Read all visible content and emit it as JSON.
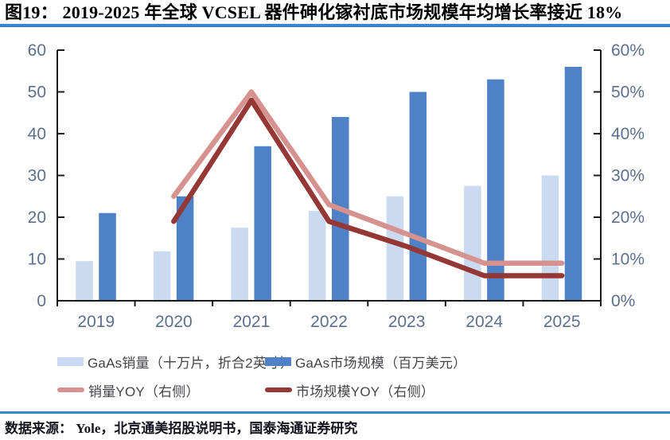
{
  "figure": {
    "title": "图19：  2019-2025 年全球 VCSEL 器件砷化镓衬底市场规模年均增长率接近 18%",
    "source": "数据来源： Yole，北京通美招股说明书，国泰海通证券研究"
  },
  "colors": {
    "accent_rule": "#3787d2",
    "accent_rule_edge": "#2a6ab0",
    "bar_light": "#c9daf1",
    "bar_dark": "#4e81c6",
    "line_pink": "#d6928f",
    "line_darkred": "#953735",
    "axis_line": "#1a1a1a",
    "axis_label": "#5d6f8e",
    "legend_text": "#44444c",
    "title_text": "#000000",
    "source_text": "#14141f"
  },
  "chart_data": {
    "type": "combo-bar-line",
    "title": "2019-2025 年全球 VCSEL 器件砷化镓衬底市场规模",
    "categories": [
      "2019",
      "2020",
      "2021",
      "2022",
      "2023",
      "2024",
      "2025"
    ],
    "series": [
      {
        "key": "gaas-sales-volume",
        "name": "GaAs销量（十万片，折合2英寸）",
        "type": "bar",
        "axis": "left",
        "color_key": "bar_light",
        "values": [
          9.5,
          11.8,
          17.5,
          21.5,
          25,
          27.5,
          30
        ]
      },
      {
        "key": "gaas-market-size",
        "name": "GaAs市场规模（百万美元）",
        "type": "bar",
        "axis": "left",
        "color_key": "bar_dark",
        "values": [
          21,
          25,
          37,
          44,
          50,
          53,
          56
        ]
      },
      {
        "key": "sales-yoy",
        "name": "销量YOY（右侧）",
        "type": "line",
        "axis": "right",
        "color_key": "line_pink",
        "values": [
          null,
          25,
          50,
          23,
          16,
          9,
          9
        ]
      },
      {
        "key": "market-size-yoy",
        "name": "市场规模YOY（右侧）",
        "type": "line",
        "axis": "right",
        "color_key": "line_darkred",
        "values": [
          null,
          19,
          48,
          19,
          13,
          6,
          6
        ]
      }
    ],
    "left_axis": {
      "min": 0,
      "max": 60,
      "step": 10,
      "tick_labels": [
        "0",
        "10",
        "20",
        "30",
        "40",
        "50",
        "60"
      ]
    },
    "right_axis": {
      "min": 0,
      "max": 60,
      "step": 10,
      "tick_labels": [
        "0%",
        "10%",
        "20%",
        "30%",
        "40%",
        "50%",
        "60%"
      ]
    },
    "grid": false,
    "legend_position": "bottom"
  },
  "legend": {
    "items": [
      {
        "label": "GaAs销量（十万片，折合2英寸）",
        "swatch": "rect",
        "color_key": "bar_light"
      },
      {
        "label": "GaAs市场规模（百万美元）",
        "swatch": "rect",
        "color_key": "bar_dark"
      },
      {
        "label": "销量YOY（右侧）",
        "swatch": "line",
        "color_key": "line_pink"
      },
      {
        "label": "市场规模YOY（右侧）",
        "swatch": "line",
        "color_key": "line_darkred"
      }
    ]
  }
}
